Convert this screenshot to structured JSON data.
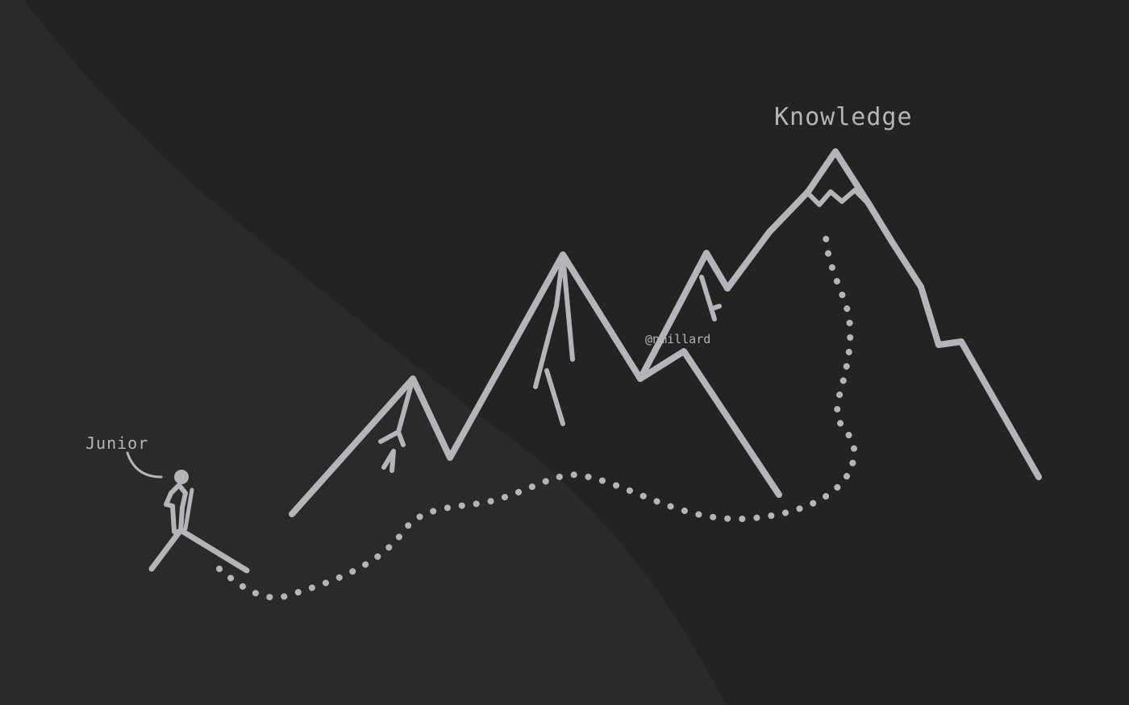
{
  "labels": {
    "summit": "Knowledge",
    "hiker": "Junior",
    "credit": "@nmillard"
  },
  "colors": {
    "background": "#232323",
    "background_light": "#2a2a2a",
    "stroke": "#b4b5b9",
    "text": "#b4b5b9"
  },
  "icons": {
    "hiker": "stick-figure-hiker-icon",
    "mountains": "mountain-range-icon",
    "path": "dotted-trail-icon"
  }
}
